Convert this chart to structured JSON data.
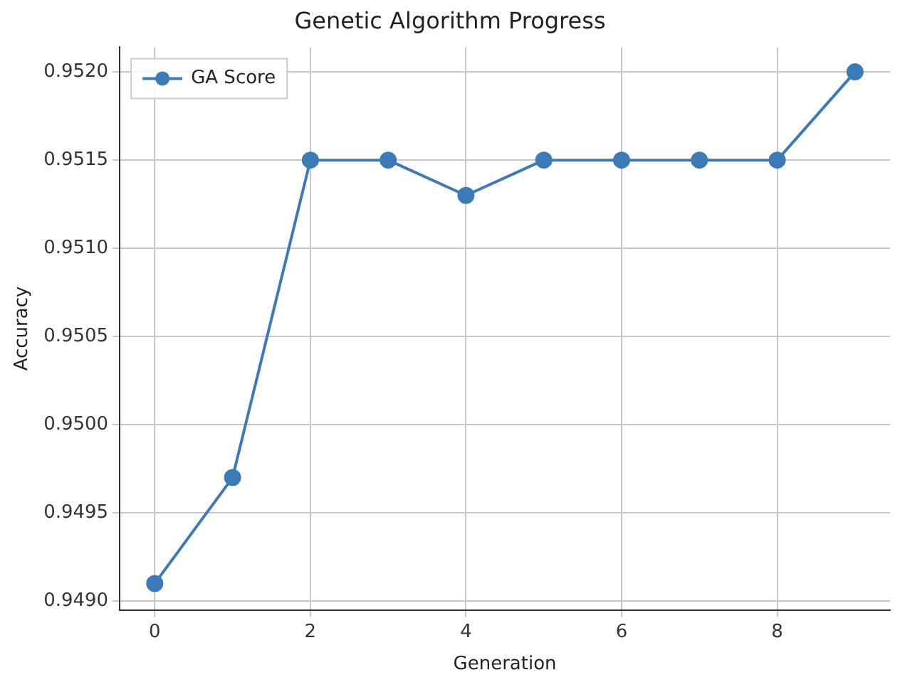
{
  "chart_data": {
    "type": "line",
    "title": "Genetic Algorithm Progress",
    "xlabel": "Generation",
    "ylabel": "Accuracy",
    "x": [
      0,
      1,
      2,
      3,
      4,
      5,
      6,
      7,
      8,
      9
    ],
    "series": [
      {
        "name": "GA Score",
        "color": "#3d7ab8",
        "values": [
          0.9491,
          0.9497,
          0.9515,
          0.9515,
          0.9513,
          0.9515,
          0.9515,
          0.9515,
          0.9515,
          0.952
        ]
      }
    ],
    "xlim": [
      -0.45,
      9.45
    ],
    "xticks": [
      0,
      2,
      4,
      6,
      8
    ],
    "ylim": [
      0.94895,
      0.95214
    ],
    "yticks": [
      {
        "value": 0.949,
        "label": "0.9490"
      },
      {
        "value": 0.9495,
        "label": "0.9495"
      },
      {
        "value": 0.95,
        "label": "0.9500"
      },
      {
        "value": 0.9505,
        "label": "0.9505"
      },
      {
        "value": 0.951,
        "label": "0.9510"
      },
      {
        "value": 0.9515,
        "label": "0.9515"
      },
      {
        "value": 0.952,
        "label": "0.9520"
      }
    ],
    "grid": true,
    "legend": "top left",
    "marker": "circle",
    "line_style": "solid"
  }
}
